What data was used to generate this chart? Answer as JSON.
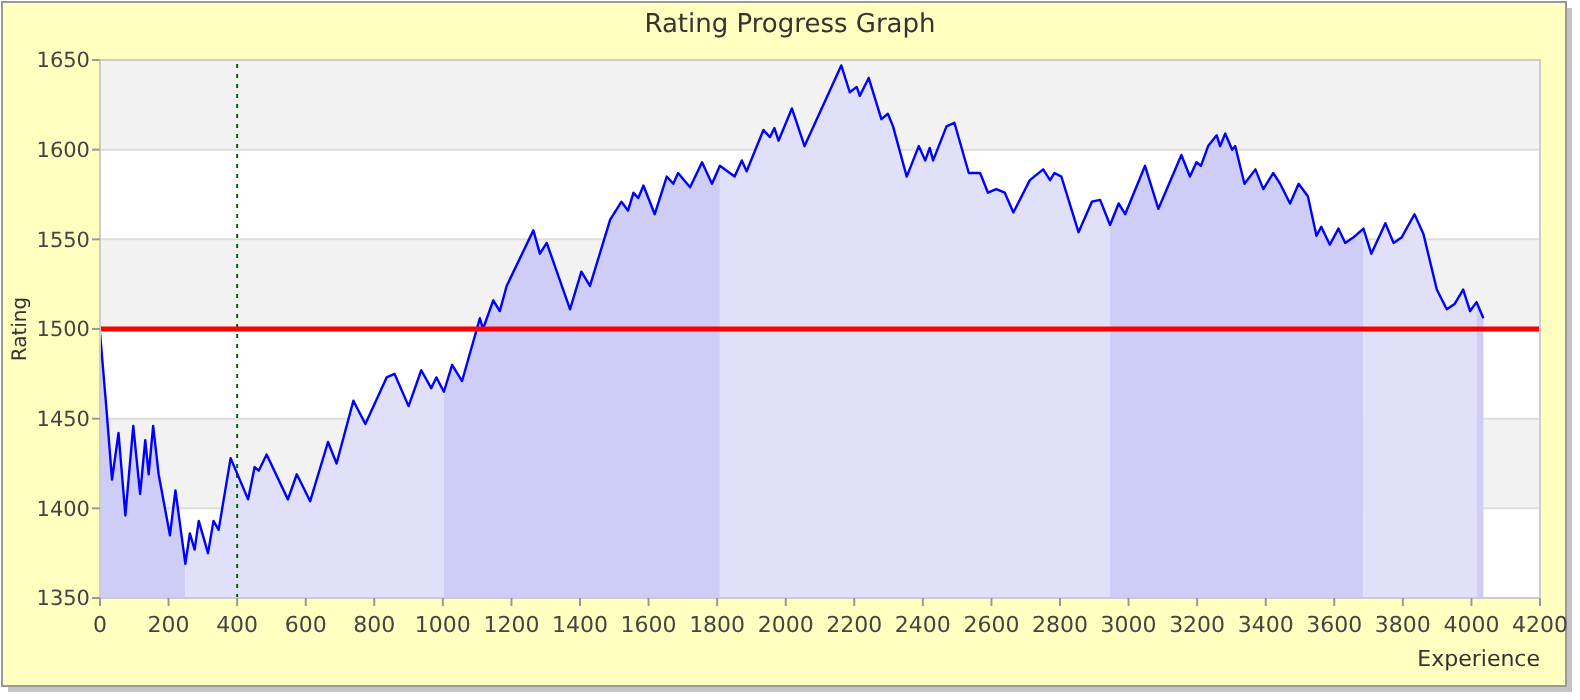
{
  "chart_data": {
    "type": "line",
    "title": "Rating Progress Graph",
    "xlabel": "Experience",
    "ylabel": "Rating",
    "xlim": [
      0,
      4200
    ],
    "xticks": [
      0,
      200,
      400,
      600,
      800,
      1000,
      1200,
      1400,
      1600,
      1800,
      2000,
      2200,
      2400,
      2600,
      2800,
      3000,
      3200,
      3400,
      3600,
      3800,
      4000,
      4200
    ],
    "ylim": [
      1350,
      1650
    ],
    "yticks": [
      1350,
      1400,
      1450,
      1500,
      1550,
      1600,
      1650
    ],
    "grid": "y",
    "ref_lines": [
      {
        "axis": "y",
        "value": 1500,
        "color": "#ff0000",
        "line_style": "solid"
      },
      {
        "axis": "x",
        "value": 400,
        "color": "#006400",
        "line_style": "dotted"
      }
    ],
    "series": [
      {
        "type": "area",
        "color": "#cdcdf8",
        "x": [
          0,
          19,
          35,
          54,
          74,
          97,
          117,
          132,
          142,
          155,
          171,
          204,
          220,
          249
        ],
        "values": [
          1498,
          1455,
          1416,
          1442,
          1396,
          1446,
          1408,
          1438,
          1419,
          1446,
          1419,
          1385,
          1410,
          1369
        ]
      },
      {
        "type": "area",
        "color": "#e0e0fa",
        "x": [
          249,
          262,
          276,
          288,
          315,
          331,
          346,
          381,
          432,
          451,
          463,
          486,
          548,
          574,
          613,
          665,
          690,
          739,
          774,
          836,
          859,
          900,
          937,
          966,
          981,
          1003
        ],
        "values": [
          1369,
          1386,
          1377,
          1393,
          1375,
          1393,
          1388,
          1428,
          1405,
          1423,
          1421,
          1430,
          1405,
          1419,
          1404,
          1437,
          1425,
          1460,
          1447,
          1473,
          1475,
          1457,
          1477,
          1467,
          1473,
          1465
        ]
      },
      {
        "type": "area",
        "color": "#cdcdf8",
        "x": [
          1003,
          1027,
          1056,
          1108,
          1117,
          1147,
          1166,
          1186,
          1264,
          1283,
          1303,
          1371,
          1404,
          1429,
          1488,
          1521,
          1540,
          1556,
          1570,
          1585,
          1618,
          1653,
          1672,
          1686,
          1721,
          1756,
          1785,
          1808
        ],
        "values": [
          1465,
          1480,
          1471,
          1506,
          1500,
          1516,
          1510,
          1524,
          1555,
          1542,
          1548,
          1511,
          1532,
          1524,
          1561,
          1571,
          1566,
          1576,
          1573,
          1580,
          1564,
          1585,
          1581,
          1587,
          1579,
          1593,
          1581,
          1591
        ]
      },
      {
        "type": "area",
        "color": "#e0e0fa",
        "x": [
          1808,
          1851,
          1872,
          1886,
          1935,
          1954,
          1967,
          1979,
          2018,
          2055,
          2162,
          2187,
          2207,
          2216,
          2242,
          2279,
          2298,
          2313,
          2353,
          2388,
          2407,
          2420,
          2430,
          2469,
          2492,
          2534,
          2567,
          2590,
          2614,
          2639,
          2664,
          2712,
          2751,
          2771,
          2784,
          2804,
          2854,
          2893,
          2917,
          2946
        ],
        "values": [
          1591,
          1585,
          1594,
          1588,
          1611,
          1607,
          1612,
          1605,
          1623,
          1602,
          1647,
          1632,
          1635,
          1630,
          1640,
          1617,
          1620,
          1613,
          1585,
          1602,
          1594,
          1601,
          1594,
          1613,
          1615,
          1587,
          1587,
          1576,
          1578,
          1576,
          1565,
          1583,
          1589,
          1583,
          1587,
          1585,
          1554,
          1571,
          1572,
          1558
        ]
      },
      {
        "type": "area",
        "color": "#cdcdf8",
        "x": [
          2946,
          2971,
          2990,
          3048,
          3087,
          3154,
          3179,
          3198,
          3211,
          3232,
          3257,
          3267,
          3282,
          3302,
          3311,
          3338,
          3370,
          3393,
          3422,
          3442,
          3471,
          3496,
          3523,
          3548,
          3562,
          3587,
          3612,
          3632,
          3655,
          3685
        ],
        "values": [
          1558,
          1570,
          1564,
          1591,
          1567,
          1597,
          1585,
          1593,
          1591,
          1602,
          1608,
          1602,
          1609,
          1600,
          1602,
          1581,
          1589,
          1578,
          1587,
          1581,
          1570,
          1581,
          1574,
          1552,
          1557,
          1547,
          1556,
          1548,
          1551,
          1556
        ]
      },
      {
        "type": "area",
        "color": "#e0e0fa",
        "x": [
          3685,
          3708,
          3749,
          3773,
          3796,
          3834,
          3860,
          3899,
          3928,
          3951,
          3976,
          3996,
          4015
        ],
        "values": [
          1556,
          1542,
          1559,
          1548,
          1551,
          1564,
          1553,
          1522,
          1511,
          1514,
          1522,
          1510,
          1515
        ]
      },
      {
        "type": "area",
        "color": "#cdcdf8",
        "x": [
          4015,
          4035
        ],
        "values": [
          1515,
          1506
        ]
      },
      {
        "color": "#0000ff",
        "x": [
          0,
          19,
          35,
          54,
          74,
          97,
          117,
          132,
          142,
          155,
          171,
          204,
          220,
          249,
          262,
          276,
          288,
          315,
          331,
          346,
          381,
          432,
          451,
          463,
          486,
          548,
          574,
          613,
          665,
          690,
          739,
          774,
          836,
          859,
          900,
          937,
          966,
          981,
          1003,
          1027,
          1056,
          1108,
          1117,
          1147,
          1166,
          1186,
          1264,
          1283,
          1303,
          1371,
          1404,
          1429,
          1488,
          1521,
          1540,
          1556,
          1570,
          1585,
          1618,
          1653,
          1672,
          1686,
          1721,
          1756,
          1785,
          1808,
          1851,
          1872,
          1886,
          1935,
          1954,
          1967,
          1979,
          2018,
          2055,
          2162,
          2187,
          2207,
          2216,
          2242,
          2279,
          2298,
          2313,
          2353,
          2388,
          2407,
          2420,
          2430,
          2469,
          2492,
          2534,
          2567,
          2590,
          2614,
          2639,
          2664,
          2712,
          2751,
          2771,
          2784,
          2804,
          2854,
          2893,
          2917,
          2946,
          2971,
          2990,
          3048,
          3087,
          3154,
          3179,
          3198,
          3211,
          3232,
          3257,
          3267,
          3282,
          3302,
          3311,
          3338,
          3370,
          3393,
          3422,
          3442,
          3471,
          3496,
          3523,
          3548,
          3562,
          3587,
          3612,
          3632,
          3655,
          3685,
          3708,
          3749,
          3773,
          3796,
          3834,
          3860,
          3899,
          3928,
          3951,
          3976,
          3996,
          4015,
          4035
        ],
        "values": [
          1498,
          1455,
          1416,
          1442,
          1396,
          1446,
          1408,
          1438,
          1419,
          1446,
          1419,
          1385,
          1410,
          1369,
          1386,
          1377,
          1393,
          1375,
          1393,
          1388,
          1428,
          1405,
          1423,
          1421,
          1430,
          1405,
          1419,
          1404,
          1437,
          1425,
          1460,
          1447,
          1473,
          1475,
          1457,
          1477,
          1467,
          1473,
          1465,
          1480,
          1471,
          1506,
          1500,
          1516,
          1510,
          1524,
          1555,
          1542,
          1548,
          1511,
          1532,
          1524,
          1561,
          1571,
          1566,
          1576,
          1573,
          1580,
          1564,
          1585,
          1581,
          1587,
          1579,
          1593,
          1581,
          1591,
          1585,
          1594,
          1588,
          1611,
          1607,
          1612,
          1605,
          1623,
          1602,
          1647,
          1632,
          1635,
          1630,
          1640,
          1617,
          1620,
          1613,
          1585,
          1602,
          1594,
          1601,
          1594,
          1613,
          1615,
          1587,
          1587,
          1576,
          1578,
          1576,
          1565,
          1583,
          1589,
          1583,
          1587,
          1585,
          1554,
          1571,
          1572,
          1558,
          1570,
          1564,
          1591,
          1567,
          1597,
          1585,
          1593,
          1591,
          1602,
          1608,
          1602,
          1609,
          1600,
          1602,
          1581,
          1589,
          1578,
          1587,
          1581,
          1570,
          1581,
          1574,
          1552,
          1557,
          1547,
          1556,
          1548,
          1551,
          1556,
          1542,
          1559,
          1548,
          1551,
          1564,
          1553,
          1522,
          1511,
          1514,
          1522,
          1510,
          1515,
          1506
        ]
      }
    ]
  }
}
